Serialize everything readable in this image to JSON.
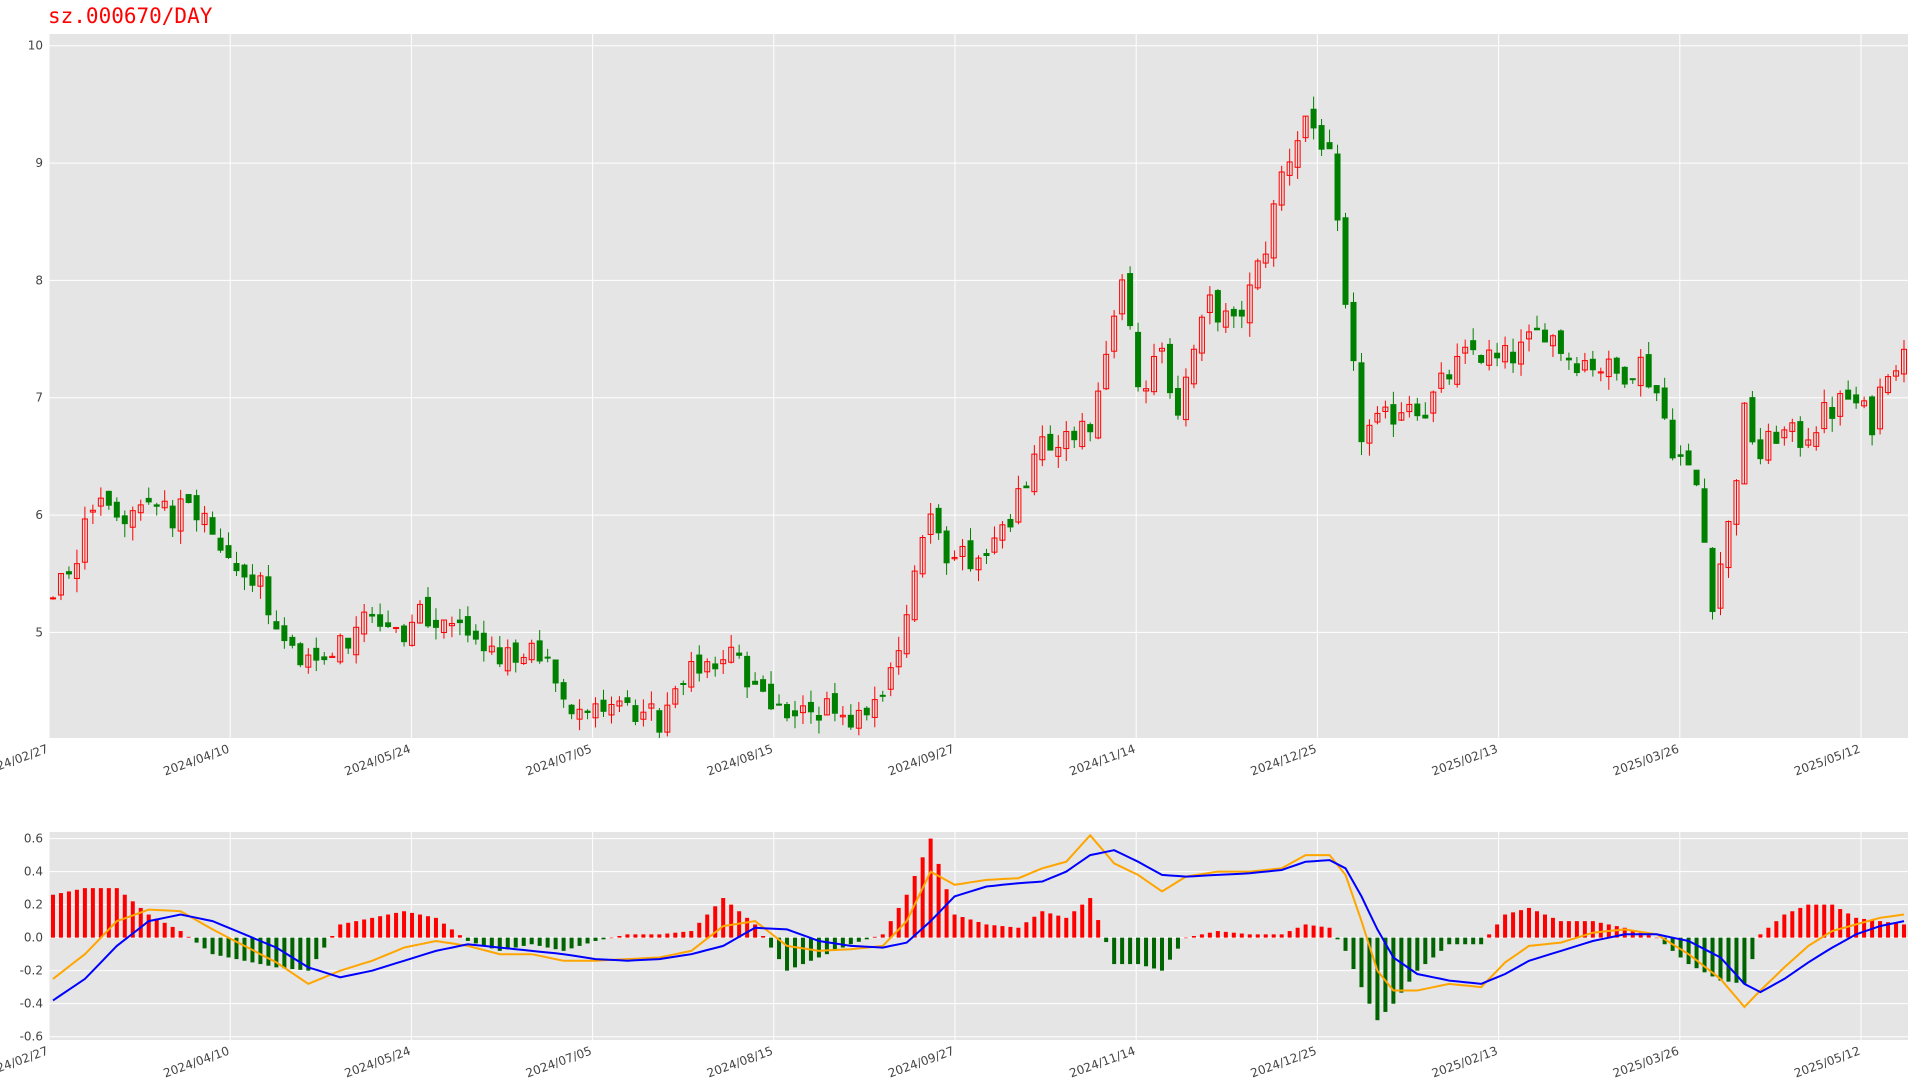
{
  "title": "sz.000670/DAY",
  "chart_data": [
    {
      "type": "candlestick",
      "title": "sz.000670/DAY",
      "x_ticks": [
        "2024/02/27",
        "2024/04/10",
        "2024/05/24",
        "2024/07/05",
        "2024/08/15",
        "2024/09/27",
        "2024/11/14",
        "2024/12/25",
        "2025/02/13",
        "2025/03/26",
        "2025/05/12"
      ],
      "y_ticks": [
        5,
        6,
        7,
        8,
        9,
        10
      ],
      "ylim": [
        4.1,
        10.1
      ],
      "grid": true,
      "up_color": "#ff0000",
      "down_color": "#008000",
      "close_trend": [
        [
          0,
          5.25
        ],
        [
          3,
          5.7
        ],
        [
          6,
          6.15
        ],
        [
          9,
          6.05
        ],
        [
          12,
          6.0
        ],
        [
          15,
          6.0
        ],
        [
          18,
          6.05
        ],
        [
          20,
          5.75
        ],
        [
          22,
          5.65
        ],
        [
          24,
          5.55
        ],
        [
          26,
          5.4
        ],
        [
          29,
          5.0
        ],
        [
          31,
          4.65
        ],
        [
          34,
          4.75
        ],
        [
          36,
          4.9
        ],
        [
          39,
          5.1
        ],
        [
          42,
          5.1
        ],
        [
          44,
          5.0
        ],
        [
          46,
          5.2
        ],
        [
          49,
          5.05
        ],
        [
          51,
          5.0
        ],
        [
          54,
          4.9
        ],
        [
          56,
          4.7
        ],
        [
          59,
          4.85
        ],
        [
          62,
          4.7
        ],
        [
          64,
          4.45
        ],
        [
          67,
          4.35
        ],
        [
          70,
          4.3
        ],
        [
          73,
          4.3
        ],
        [
          76,
          4.25
        ],
        [
          78,
          4.4
        ],
        [
          80,
          4.65
        ],
        [
          82,
          4.75
        ],
        [
          85,
          4.8
        ],
        [
          88,
          4.55
        ],
        [
          91,
          4.35
        ],
        [
          94,
          4.3
        ],
        [
          97,
          4.35
        ],
        [
          100,
          4.3
        ],
        [
          103,
          4.4
        ],
        [
          105,
          4.7
        ],
        [
          108,
          5.45
        ],
        [
          110,
          6.0
        ],
        [
          112,
          5.65
        ],
        [
          115,
          5.6
        ],
        [
          118,
          5.85
        ],
        [
          121,
          6.1
        ],
        [
          124,
          6.55
        ],
        [
          127,
          6.7
        ],
        [
          130,
          6.8
        ],
        [
          132,
          7.3
        ],
        [
          134,
          8.1
        ],
        [
          136,
          7.0
        ],
        [
          139,
          7.4
        ],
        [
          141,
          6.9
        ],
        [
          143,
          7.4
        ],
        [
          145,
          7.8
        ],
        [
          148,
          7.6
        ],
        [
          150,
          7.9
        ],
        [
          152,
          8.3
        ],
        [
          154,
          8.9
        ],
        [
          157,
          9.4
        ],
        [
          159,
          9.2
        ],
        [
          160,
          9.0
        ],
        [
          161,
          8.4
        ],
        [
          162,
          7.7
        ],
        [
          164,
          6.7
        ],
        [
          167,
          6.8
        ],
        [
          170,
          7.0
        ],
        [
          172,
          6.9
        ],
        [
          175,
          7.2
        ],
        [
          178,
          7.4
        ],
        [
          181,
          7.3
        ],
        [
          184,
          7.4
        ],
        [
          187,
          7.6
        ],
        [
          190,
          7.35
        ],
        [
          193,
          7.3
        ],
        [
          196,
          7.2
        ],
        [
          199,
          7.3
        ],
        [
          201,
          7.05
        ],
        [
          203,
          6.6
        ],
        [
          206,
          6.25
        ],
        [
          208,
          5.3
        ],
        [
          210,
          5.9
        ],
        [
          212,
          6.85
        ],
        [
          214,
          6.5
        ],
        [
          216,
          6.7
        ],
        [
          219,
          6.65
        ],
        [
          222,
          6.85
        ],
        [
          225,
          7.0
        ],
        [
          228,
          6.8
        ],
        [
          230,
          7.3
        ],
        [
          232,
          7.35
        ]
      ]
    },
    {
      "type": "macd",
      "x_ticks": [
        "2024/02/27",
        "2024/04/10",
        "2024/05/24",
        "2024/07/05",
        "2024/08/15",
        "2024/09/27",
        "2024/11/14",
        "2024/12/25",
        "2025/02/13",
        "2025/03/26",
        "2025/05/12"
      ],
      "y_ticks": [
        -0.6,
        -0.4,
        -0.2,
        0.0,
        0.2,
        0.4,
        0.6
      ],
      "ylim": [
        -0.62,
        0.64
      ],
      "grid": true,
      "series": [
        {
          "color": "#ffa500",
          "points": [
            [
              0,
              -0.25
            ],
            [
              4,
              -0.1
            ],
            [
              8,
              0.1
            ],
            [
              12,
              0.17
            ],
            [
              16,
              0.16
            ],
            [
              20,
              0.05
            ],
            [
              24,
              -0.05
            ],
            [
              28,
              -0.15
            ],
            [
              32,
              -0.28
            ],
            [
              36,
              -0.2
            ],
            [
              40,
              -0.14
            ],
            [
              44,
              -0.06
            ],
            [
              48,
              -0.02
            ],
            [
              52,
              -0.05
            ],
            [
              56,
              -0.1
            ],
            [
              60,
              -0.1
            ],
            [
              64,
              -0.14
            ],
            [
              68,
              -0.14
            ],
            [
              72,
              -0.13
            ],
            [
              76,
              -0.12
            ],
            [
              80,
              -0.08
            ],
            [
              84,
              0.07
            ],
            [
              88,
              0.1
            ],
            [
              92,
              -0.05
            ],
            [
              96,
              -0.08
            ],
            [
              100,
              -0.07
            ],
            [
              104,
              -0.05
            ],
            [
              107,
              0.1
            ],
            [
              110,
              0.4
            ],
            [
              113,
              0.32
            ],
            [
              117,
              0.35
            ],
            [
              121,
              0.36
            ],
            [
              124,
              0.42
            ],
            [
              127,
              0.46
            ],
            [
              130,
              0.62
            ],
            [
              133,
              0.45
            ],
            [
              136,
              0.38
            ],
            [
              139,
              0.28
            ],
            [
              142,
              0.37
            ],
            [
              146,
              0.4
            ],
            [
              150,
              0.4
            ],
            [
              154,
              0.42
            ],
            [
              157,
              0.5
            ],
            [
              160,
              0.5
            ],
            [
              162,
              0.38
            ],
            [
              164,
              0.1
            ],
            [
              166,
              -0.2
            ],
            [
              168,
              -0.32
            ],
            [
              171,
              -0.32
            ],
            [
              175,
              -0.28
            ],
            [
              179,
              -0.3
            ],
            [
              182,
              -0.15
            ],
            [
              185,
              -0.05
            ],
            [
              189,
              -0.03
            ],
            [
              193,
              0.03
            ],
            [
              197,
              0.05
            ],
            [
              201,
              0.02
            ],
            [
              205,
              -0.1
            ],
            [
              209,
              -0.25
            ],
            [
              212,
              -0.42
            ],
            [
              214,
              -0.32
            ],
            [
              217,
              -0.18
            ],
            [
              220,
              -0.05
            ],
            [
              223,
              0.04
            ],
            [
              226,
              0.08
            ],
            [
              229,
              0.12
            ],
            [
              232,
              0.14
            ]
          ]
        },
        {
          "color": "#0000ff",
          "points": [
            [
              0,
              -0.38
            ],
            [
              4,
              -0.25
            ],
            [
              8,
              -0.05
            ],
            [
              12,
              0.1
            ],
            [
              16,
              0.14
            ],
            [
              20,
              0.1
            ],
            [
              24,
              0.02
            ],
            [
              28,
              -0.06
            ],
            [
              32,
              -0.18
            ],
            [
              36,
              -0.24
            ],
            [
              40,
              -0.2
            ],
            [
              44,
              -0.14
            ],
            [
              48,
              -0.08
            ],
            [
              52,
              -0.04
            ],
            [
              56,
              -0.06
            ],
            [
              60,
              -0.08
            ],
            [
              64,
              -0.1
            ],
            [
              68,
              -0.13
            ],
            [
              72,
              -0.14
            ],
            [
              76,
              -0.13
            ],
            [
              80,
              -0.1
            ],
            [
              84,
              -0.05
            ],
            [
              88,
              0.06
            ],
            [
              92,
              0.05
            ],
            [
              96,
              -0.02
            ],
            [
              100,
              -0.05
            ],
            [
              104,
              -0.06
            ],
            [
              107,
              -0.03
            ],
            [
              110,
              0.1
            ],
            [
              113,
              0.25
            ],
            [
              117,
              0.31
            ],
            [
              121,
              0.33
            ],
            [
              124,
              0.34
            ],
            [
              127,
              0.4
            ],
            [
              130,
              0.5
            ],
            [
              133,
              0.53
            ],
            [
              136,
              0.46
            ],
            [
              139,
              0.38
            ],
            [
              142,
              0.37
            ],
            [
              146,
              0.38
            ],
            [
              150,
              0.39
            ],
            [
              154,
              0.41
            ],
            [
              157,
              0.46
            ],
            [
              160,
              0.47
            ],
            [
              162,
              0.42
            ],
            [
              164,
              0.25
            ],
            [
              166,
              0.05
            ],
            [
              168,
              -0.12
            ],
            [
              171,
              -0.22
            ],
            [
              175,
              -0.26
            ],
            [
              179,
              -0.28
            ],
            [
              182,
              -0.22
            ],
            [
              185,
              -0.14
            ],
            [
              189,
              -0.08
            ],
            [
              193,
              -0.02
            ],
            [
              197,
              0.02
            ],
            [
              201,
              0.02
            ],
            [
              205,
              -0.02
            ],
            [
              209,
              -0.12
            ],
            [
              212,
              -0.28
            ],
            [
              214,
              -0.33
            ],
            [
              217,
              -0.25
            ],
            [
              220,
              -0.15
            ],
            [
              223,
              -0.06
            ],
            [
              226,
              0.02
            ],
            [
              229,
              0.07
            ],
            [
              232,
              0.1
            ]
          ]
        }
      ],
      "histogram_colors": {
        "positive": "#ff0000",
        "negative": "#006400"
      }
    }
  ]
}
